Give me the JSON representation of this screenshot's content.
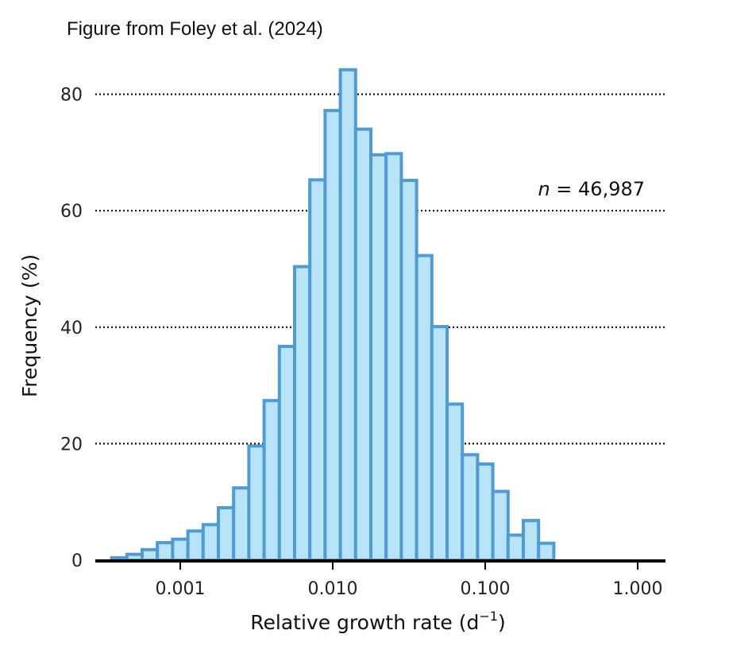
{
  "caption": "Figure from Foley et al. (2024)",
  "chart_data": {
    "type": "bar",
    "subtype": "histogram",
    "xscale": "log",
    "xlabel": "Relative growth rate (d",
    "xlabel_superscript": "−1",
    "xlabel_suffix": ")",
    "ylabel": "Frequency (%)",
    "ylim": [
      0,
      87
    ],
    "yticks": [
      0,
      20,
      40,
      60,
      80
    ],
    "ytick_labels": [
      "0",
      "20",
      "40",
      "60",
      "80"
    ],
    "xticks": [
      0.001,
      0.01,
      0.1,
      1.0
    ],
    "xtick_labels": [
      "0.001",
      "0.010",
      "0.100",
      "1.000"
    ],
    "grid": "horizontal-dotted",
    "annotation": {
      "n_label": "n",
      "n_value": " = 46,987"
    },
    "bins_log10": {
      "start": -3.45,
      "width": 0.1
    },
    "values": [
      0.4,
      1.0,
      1.8,
      3.0,
      3.6,
      5.0,
      6.1,
      9.0,
      12.4,
      19.6,
      27.4,
      36.7,
      50.4,
      65.3,
      77.2,
      84.2,
      74.0,
      69.6,
      69.8,
      65.2,
      52.3,
      40.1,
      26.8,
      18.1,
      16.5,
      11.8,
      4.3,
      6.8,
      2.9
    ],
    "series_color": "#b9e4f8",
    "edge_color": "#4f9bd3"
  }
}
